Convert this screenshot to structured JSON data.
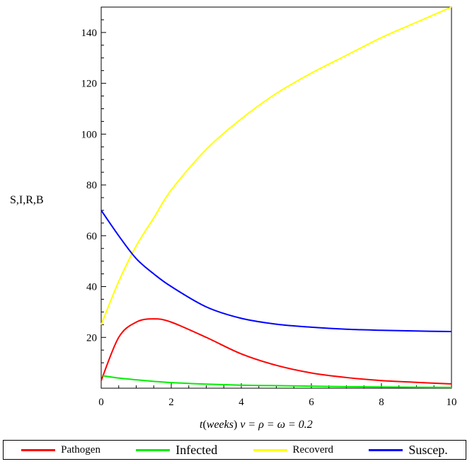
{
  "chart_data": {
    "type": "line",
    "title": "",
    "ylabel": "S,I,R,B",
    "xlabel_prefix": "t",
    "xlabel_paren": "weeks",
    "xlabel_suffix": "ν = ρ = ω = 0.2",
    "xlim": [
      0,
      10
    ],
    "ylim": [
      0,
      150
    ],
    "x_ticks": [
      0,
      2,
      4,
      6,
      8,
      10
    ],
    "y_ticks": [
      20,
      40,
      60,
      80,
      100,
      120,
      140
    ],
    "grid": false,
    "legend_position": "bottom",
    "x": [
      0,
      0.5,
      1,
      1.5,
      2,
      3,
      4,
      5,
      6,
      7,
      8,
      9,
      10
    ],
    "series": [
      {
        "name": "Pathogen",
        "color": "#ff0000",
        "values": [
          3,
          20,
          26,
          27.3,
          26,
          20,
          13.5,
          9,
          6,
          4.2,
          3,
          2.3,
          1.7
        ]
      },
      {
        "name": "Infected",
        "color": "#00ee00",
        "values": [
          5,
          4,
          3.3,
          2.7,
          2.2,
          1.6,
          1.2,
          1,
          0.8,
          0.6,
          0.5,
          0.4,
          0.3
        ]
      },
      {
        "name": "Recoverd",
        "color": "#ffff00",
        "values": [
          25,
          42,
          56,
          67,
          78,
          94,
          106,
          116,
          124,
          131,
          138,
          144,
          150
        ]
      },
      {
        "name": "Suscep.",
        "color": "#0000ff",
        "values": [
          70,
          60,
          51,
          45,
          40,
          32,
          27.5,
          25.2,
          24,
          23.2,
          22.8,
          22.5,
          22.3
        ]
      }
    ]
  }
}
